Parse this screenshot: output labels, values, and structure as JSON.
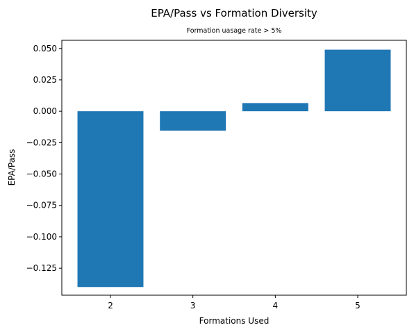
{
  "chart_data": {
    "type": "bar",
    "title": "EPA/Pass vs Formation Diversity",
    "subtitle": "Formation uasage rate > 5%",
    "xlabel": "Formations Used",
    "ylabel": "EPA/Pass",
    "categories": [
      "2",
      "3",
      "4",
      "5"
    ],
    "values": [
      -0.14,
      -0.0155,
      0.0065,
      0.049
    ],
    "ylim": [
      -0.1465,
      0.0565
    ],
    "yticks": [
      -0.125,
      -0.1,
      -0.075,
      -0.05,
      -0.025,
      0.0,
      0.025,
      0.05
    ],
    "ytick_labels": [
      "−0.125",
      "−0.100",
      "−0.075",
      "−0.050",
      "−0.025",
      "0.000",
      "0.025",
      "0.050"
    ],
    "grid": false,
    "bar_color": "#1f77b4"
  }
}
